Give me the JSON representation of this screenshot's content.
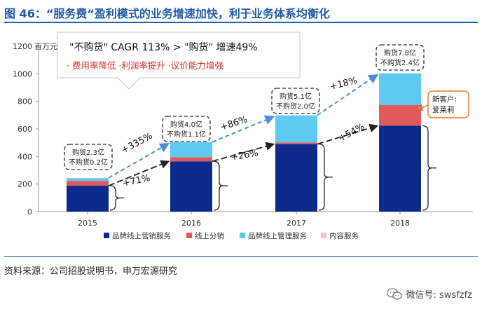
{
  "title": "图 46：“服务费“盈利模式的业务增速加快，利于业务体系均衡化",
  "source": "资料来源：公司招股说明书，申万宏源研究",
  "watermark": "微信号: swsfzfz",
  "callout": {
    "line1": "\"不购货\" CAGR 113% > \"购货\" 增速49%",
    "line2": "· 费用率降低 ·利润率提升 ·议价能力增强"
  },
  "new_customer_label": [
    "新客户:",
    "爱莱莉"
  ],
  "chart_data": {
    "type": "bar",
    "stacked": true,
    "ylabel": "百万元",
    "ylim": [
      0,
      1200
    ],
    "yticks": [
      0,
      200,
      400,
      600,
      800,
      1000,
      1200
    ],
    "grid": false,
    "legend_position": "bottom",
    "categories": [
      "2015",
      "2016",
      "2017",
      "2018"
    ],
    "series": [
      {
        "name": "品牌线上营销服务",
        "color": "#0c2a8c",
        "values": [
          188,
          365,
          490,
          623
        ]
      },
      {
        "name": "线上分销",
        "color": "#e05a5a",
        "values": [
          35,
          30,
          12,
          150
        ]
      },
      {
        "name": "品牌线上管理服务",
        "color": "#5ccaf2",
        "values": [
          20,
          108,
          195,
          230
        ]
      },
      {
        "name": "内容服务",
        "color": "#f6c3cc",
        "values": [
          2,
          2,
          3,
          2
        ]
      }
    ],
    "bar_labels": [
      [
        "购货2.3亿",
        "不购货0.2亿"
      ],
      [
        "购货4.0亿",
        "不购货1.1亿"
      ],
      [
        "购货5.1亿",
        "不购货2.0亿"
      ],
      [
        "购货7.8亿",
        "不购货2.4亿"
      ]
    ],
    "growth_total": [
      "+335%",
      "+86%",
      "+18%"
    ],
    "growth_core": [
      "+71%",
      "+26%",
      "+54%"
    ]
  }
}
